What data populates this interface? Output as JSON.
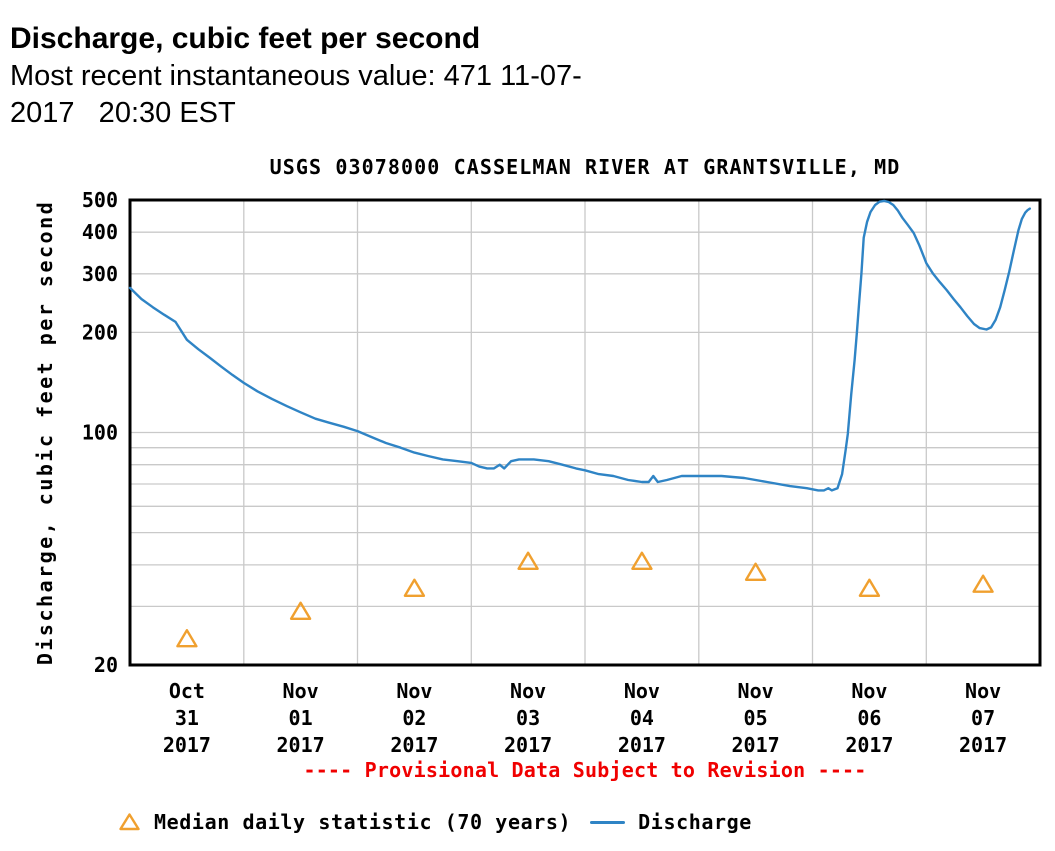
{
  "header": {
    "title": "Discharge, cubic feet per second",
    "subtitle_line1": "Most recent instantaneous value: 471 11-07-",
    "subtitle_line2": "2017   20:30 EST"
  },
  "chart_data": {
    "type": "line",
    "title": "USGS 03078000 CASSELMAN RIVER AT GRANTSVILLE, MD",
    "ylabel": "Discharge, cubic feet per second",
    "yscale": "log",
    "ylim": [
      20,
      500
    ],
    "y_labeled_ticks": [
      500,
      400,
      300,
      200,
      100,
      20
    ],
    "y_gridlines": [
      400,
      300,
      200,
      100,
      90,
      80,
      70,
      60,
      50,
      40,
      30
    ],
    "x_range_days": 8,
    "x_tick_labels": [
      [
        "Oct",
        "31",
        "2017"
      ],
      [
        "Nov",
        "01",
        "2017"
      ],
      [
        "Nov",
        "02",
        "2017"
      ],
      [
        "Nov",
        "03",
        "2017"
      ],
      [
        "Nov",
        "04",
        "2017"
      ],
      [
        "Nov",
        "05",
        "2017"
      ],
      [
        "Nov",
        "06",
        "2017"
      ],
      [
        "Nov",
        "07",
        "2017"
      ]
    ],
    "grid": true,
    "legend_position": "bottom",
    "provisional_note": "---- Provisional Data Subject to Revision ----",
    "series": [
      {
        "name": "Discharge",
        "style": "line",
        "color": "#2f84c5",
        "points": [
          [
            0.0,
            272
          ],
          [
            0.1,
            252
          ],
          [
            0.2,
            238
          ],
          [
            0.3,
            226
          ],
          [
            0.4,
            215
          ],
          [
            0.5,
            190
          ],
          [
            0.6,
            178
          ],
          [
            0.7,
            168
          ],
          [
            0.8,
            158
          ],
          [
            0.9,
            149
          ],
          [
            1.0,
            141
          ],
          [
            1.12,
            133
          ],
          [
            1.25,
            126
          ],
          [
            1.38,
            120
          ],
          [
            1.5,
            115
          ],
          [
            1.63,
            110
          ],
          [
            1.75,
            107
          ],
          [
            1.88,
            104
          ],
          [
            2.0,
            101
          ],
          [
            2.12,
            97
          ],
          [
            2.25,
            93
          ],
          [
            2.38,
            90
          ],
          [
            2.5,
            87
          ],
          [
            2.62,
            85
          ],
          [
            2.75,
            83
          ],
          [
            2.88,
            82
          ],
          [
            3.0,
            81
          ],
          [
            3.07,
            79
          ],
          [
            3.14,
            78
          ],
          [
            3.2,
            78
          ],
          [
            3.25,
            80
          ],
          [
            3.29,
            78
          ],
          [
            3.35,
            82
          ],
          [
            3.42,
            83
          ],
          [
            3.55,
            83
          ],
          [
            3.68,
            82
          ],
          [
            3.8,
            80
          ],
          [
            3.92,
            78
          ],
          [
            4.0,
            77
          ],
          [
            4.12,
            75
          ],
          [
            4.25,
            74
          ],
          [
            4.38,
            72
          ],
          [
            4.5,
            71
          ],
          [
            4.56,
            71
          ],
          [
            4.6,
            74
          ],
          [
            4.64,
            71
          ],
          [
            4.72,
            72
          ],
          [
            4.85,
            74
          ],
          [
            5.0,
            74
          ],
          [
            5.2,
            74
          ],
          [
            5.4,
            73
          ],
          [
            5.6,
            71
          ],
          [
            5.8,
            69
          ],
          [
            5.95,
            68
          ],
          [
            6.05,
            67
          ],
          [
            6.1,
            67
          ],
          [
            6.14,
            68
          ],
          [
            6.17,
            67
          ],
          [
            6.22,
            68
          ],
          [
            6.26,
            75
          ],
          [
            6.29,
            88
          ],
          [
            6.31,
            99
          ],
          [
            6.34,
            130
          ],
          [
            6.37,
            165
          ],
          [
            6.39,
            200
          ],
          [
            6.41,
            245
          ],
          [
            6.43,
            300
          ],
          [
            6.45,
            385
          ],
          [
            6.48,
            430
          ],
          [
            6.51,
            460
          ],
          [
            6.55,
            483
          ],
          [
            6.59,
            494
          ],
          [
            6.63,
            497
          ],
          [
            6.67,
            493
          ],
          [
            6.71,
            483
          ],
          [
            6.75,
            465
          ],
          [
            6.79,
            442
          ],
          [
            6.84,
            420
          ],
          [
            6.89,
            398
          ],
          [
            6.94,
            365
          ],
          [
            7.0,
            323
          ],
          [
            7.06,
            300
          ],
          [
            7.12,
            283
          ],
          [
            7.18,
            268
          ],
          [
            7.24,
            252
          ],
          [
            7.3,
            238
          ],
          [
            7.36,
            224
          ],
          [
            7.42,
            212
          ],
          [
            7.47,
            206
          ],
          [
            7.53,
            204
          ],
          [
            7.57,
            207
          ],
          [
            7.61,
            218
          ],
          [
            7.65,
            238
          ],
          [
            7.69,
            268
          ],
          [
            7.73,
            305
          ],
          [
            7.77,
            352
          ],
          [
            7.81,
            405
          ],
          [
            7.84,
            438
          ],
          [
            7.87,
            458
          ],
          [
            7.89,
            466
          ],
          [
            7.91,
            471
          ]
        ]
      },
      {
        "name": "Median daily statistic (70 years)",
        "style": "triangle-markers",
        "color": "#f0a02f",
        "points": [
          [
            0.5,
            24
          ],
          [
            1.5,
            29
          ],
          [
            2.5,
            34
          ],
          [
            3.5,
            41
          ],
          [
            4.5,
            41
          ],
          [
            5.5,
            38
          ],
          [
            6.5,
            34
          ],
          [
            7.5,
            35
          ]
        ]
      }
    ]
  },
  "legend": {
    "median_label": "Median daily statistic (70 years)",
    "discharge_label": "Discharge"
  },
  "colors": {
    "line": "#2f84c5",
    "marker": "#f0a02f",
    "provisional": "#f00000",
    "grid": "#c9c9c9",
    "border": "#000000",
    "text": "#000000"
  }
}
